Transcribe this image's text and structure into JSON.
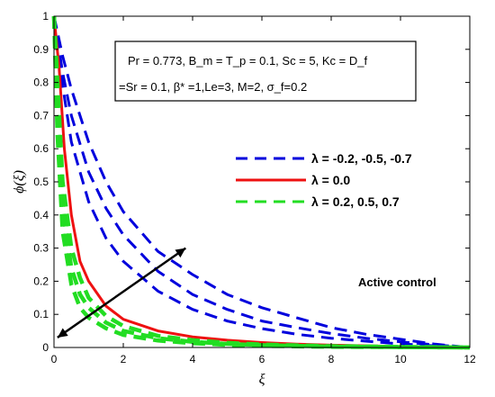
{
  "chart_data": {
    "type": "line",
    "xlabel": "ξ",
    "ylabel": "ϕ(ξ)",
    "xlim": [
      0,
      12
    ],
    "ylim": [
      0,
      1
    ],
    "xticks": [
      0,
      2,
      4,
      6,
      8,
      10,
      12
    ],
    "yticks": [
      0,
      0.1,
      0.2,
      0.3,
      0.4,
      0.5,
      0.6,
      0.7,
      0.8,
      0.9,
      1
    ],
    "grid": false,
    "legend_position": "right-middle",
    "info_box": {
      "line1": "Pr = 0.773, B_m = T_p = 0.1, Sc = 5, Kc = D_f",
      "line2": "=Sr = 0.1,  β* =1,Le=3, M=2,  σ_f=0.2"
    },
    "legend": [
      {
        "label": "λ = -0.2, -0.5, -0.7",
        "color": "#0000dd",
        "style": "dashed"
      },
      {
        "label": "λ = 0.0",
        "color": "#ee1111",
        "style": "solid"
      },
      {
        "label": "λ = 0.2, 0.5, 0.7",
        "color": "#22dd22",
        "style": "dashed"
      }
    ],
    "annotation": "Active control",
    "arrow": {
      "from": [
        0.1,
        0.03
      ],
      "to": [
        3.8,
        0.3
      ]
    },
    "series": [
      {
        "group": "λ = -0.2, -0.5, -0.7",
        "color": "#0000dd",
        "style": "dashed",
        "x": [
          0,
          0.25,
          0.5,
          1,
          1.5,
          2,
          3,
          4,
          5,
          6,
          7,
          8,
          9,
          10,
          11,
          12
        ],
        "y": [
          1,
          0.88,
          0.78,
          0.62,
          0.5,
          0.41,
          0.29,
          0.22,
          0.16,
          0.12,
          0.09,
          0.06,
          0.04,
          0.025,
          0.01,
          0
        ]
      },
      {
        "group": "λ = -0.2, -0.5, -0.7",
        "color": "#0000dd",
        "style": "dashed",
        "x": [
          0,
          0.25,
          0.5,
          1,
          1.5,
          2,
          3,
          4,
          5,
          6,
          7,
          8,
          9,
          10,
          11,
          12
        ],
        "y": [
          1,
          0.83,
          0.7,
          0.53,
          0.42,
          0.34,
          0.23,
          0.16,
          0.115,
          0.08,
          0.06,
          0.042,
          0.028,
          0.017,
          0.008,
          0
        ]
      },
      {
        "group": "λ = -0.2, -0.5, -0.7",
        "color": "#0000dd",
        "style": "dashed",
        "x": [
          0,
          0.25,
          0.5,
          1,
          1.5,
          2,
          3,
          4,
          5,
          6,
          7,
          8,
          9,
          10,
          11,
          12
        ],
        "y": [
          1,
          0.79,
          0.62,
          0.44,
          0.33,
          0.26,
          0.17,
          0.115,
          0.08,
          0.057,
          0.04,
          0.028,
          0.019,
          0.011,
          0.005,
          0
        ]
      },
      {
        "group": "λ = 0.0",
        "color": "#ee1111",
        "style": "solid",
        "x": [
          0,
          0.15,
          0.3,
          0.5,
          0.75,
          1,
          1.5,
          2,
          3,
          4,
          5,
          6,
          7,
          8,
          10,
          12
        ],
        "y": [
          1,
          0.84,
          0.6,
          0.4,
          0.26,
          0.2,
          0.125,
          0.085,
          0.05,
          0.032,
          0.022,
          0.015,
          0.01,
          0.007,
          0.003,
          0
        ]
      },
      {
        "group": "λ = 0.2, 0.5, 0.7",
        "color": "#22dd22",
        "style": "dashed",
        "x": [
          0,
          0.1,
          0.25,
          0.5,
          0.75,
          1,
          1.5,
          2,
          3,
          4,
          5,
          6,
          8,
          10,
          12
        ],
        "y": [
          1,
          0.8,
          0.5,
          0.3,
          0.21,
          0.15,
          0.095,
          0.065,
          0.035,
          0.022,
          0.014,
          0.009,
          0.004,
          0.002,
          0
        ]
      },
      {
        "group": "λ = 0.2, 0.5, 0.7",
        "color": "#22dd22",
        "style": "dashed",
        "x": [
          0,
          0.1,
          0.25,
          0.5,
          0.75,
          1,
          1.5,
          2,
          3,
          4,
          5,
          6,
          8,
          10,
          12
        ],
        "y": [
          1,
          0.72,
          0.42,
          0.24,
          0.16,
          0.12,
          0.075,
          0.05,
          0.028,
          0.017,
          0.011,
          0.007,
          0.003,
          0.001,
          0
        ]
      },
      {
        "group": "λ = 0.2, 0.5, 0.7",
        "color": "#22dd22",
        "style": "dashed",
        "x": [
          0,
          0.1,
          0.25,
          0.5,
          0.75,
          1,
          1.5,
          2,
          3,
          4,
          5,
          6,
          8,
          10,
          12
        ],
        "y": [
          1,
          0.64,
          0.35,
          0.19,
          0.12,
          0.09,
          0.058,
          0.038,
          0.021,
          0.013,
          0.008,
          0.005,
          0.002,
          0.001,
          0
        ]
      }
    ]
  }
}
